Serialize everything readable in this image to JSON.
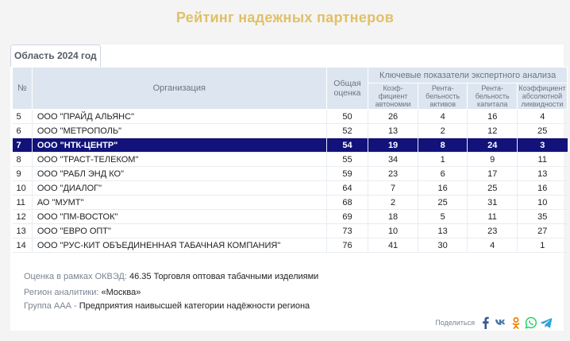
{
  "page": {
    "title": "Рейтинг надежных партнеров"
  },
  "region_tab": {
    "label": "Область 2024 год"
  },
  "table": {
    "headers": {
      "num": "№",
      "org": "Организация",
      "overall": "Общая оценка",
      "group": "Ключевые показатели экспертного анализа",
      "metrics": [
        "Коэф-фициент автономии",
        "Рента-бельность активов",
        "Рента-бельность капитала",
        "Коэффициент абсолютной ликвидности"
      ]
    },
    "rows": [
      {
        "num": "5",
        "org": "ООО \"ПРАЙД АЛЬЯНС\"",
        "overall": "50",
        "m1": "26",
        "m2": "4",
        "m3": "16",
        "m4": "4",
        "highlight": false
      },
      {
        "num": "6",
        "org": "ООО \"МЕТРОПОЛЬ\"",
        "overall": "52",
        "m1": "13",
        "m2": "2",
        "m3": "12",
        "m4": "25",
        "highlight": false
      },
      {
        "num": "7",
        "org": "ООО \"НТК-ЦЕНТР\"",
        "overall": "54",
        "m1": "19",
        "m2": "8",
        "m3": "24",
        "m4": "3",
        "highlight": true
      },
      {
        "num": "8",
        "org": "ООО \"ТРАСТ-ТЕЛЕКОМ\"",
        "overall": "55",
        "m1": "34",
        "m2": "1",
        "m3": "9",
        "m4": "11",
        "highlight": false
      },
      {
        "num": "9",
        "org": "ООО \"РАБЛ ЭНД КО\"",
        "overall": "59",
        "m1": "23",
        "m2": "6",
        "m3": "17",
        "m4": "13",
        "highlight": false
      },
      {
        "num": "10",
        "org": "ООО \"ДИАЛОГ\"",
        "overall": "64",
        "m1": "7",
        "m2": "16",
        "m3": "25",
        "m4": "16",
        "highlight": false
      },
      {
        "num": "11",
        "org": "АО \"МУМТ\"",
        "overall": "68",
        "m1": "2",
        "m2": "25",
        "m3": "31",
        "m4": "10",
        "highlight": false
      },
      {
        "num": "12",
        "org": "ООО \"ПМ-ВОСТОК\"",
        "overall": "69",
        "m1": "18",
        "m2": "5",
        "m3": "11",
        "m4": "35",
        "highlight": false
      },
      {
        "num": "13",
        "org": "ООО \"ЕВРО ОПТ\"",
        "overall": "73",
        "m1": "10",
        "m2": "13",
        "m3": "23",
        "m4": "27",
        "highlight": false
      },
      {
        "num": "14",
        "org": "ООО \"РУС-КИТ ОБЪЕДИНЕННАЯ ТАБАЧНАЯ КОМПАНИЯ\"",
        "overall": "76",
        "m1": "41",
        "m2": "30",
        "m3": "4",
        "m4": "1",
        "highlight": false
      }
    ]
  },
  "info": {
    "okved_label": "Оценка в рамках ОКВЭД:",
    "okved_value": "46.35 Торговля оптовая табачными изделиями",
    "region_label": "Регион аналитики:",
    "region_value": "«Москва»",
    "group_label": "Группа ААА -",
    "group_value": "Предприятия наивысшей категории надёжности региона"
  },
  "share": {
    "label": "Поделиться",
    "icons": [
      "facebook-icon",
      "vk-icon",
      "odnoklassniki-icon",
      "whatsapp-icon",
      "telegram-icon"
    ],
    "colors": {
      "facebook": "#3b5998",
      "vk": "#4a76a8",
      "ok": "#ee8208",
      "whatsapp": "#25d366",
      "telegram": "#2aa3d8"
    }
  },
  "colors": {
    "title": "#e0c068",
    "header_bg": "#dde6f0",
    "highlight_bg": "#12127a"
  }
}
